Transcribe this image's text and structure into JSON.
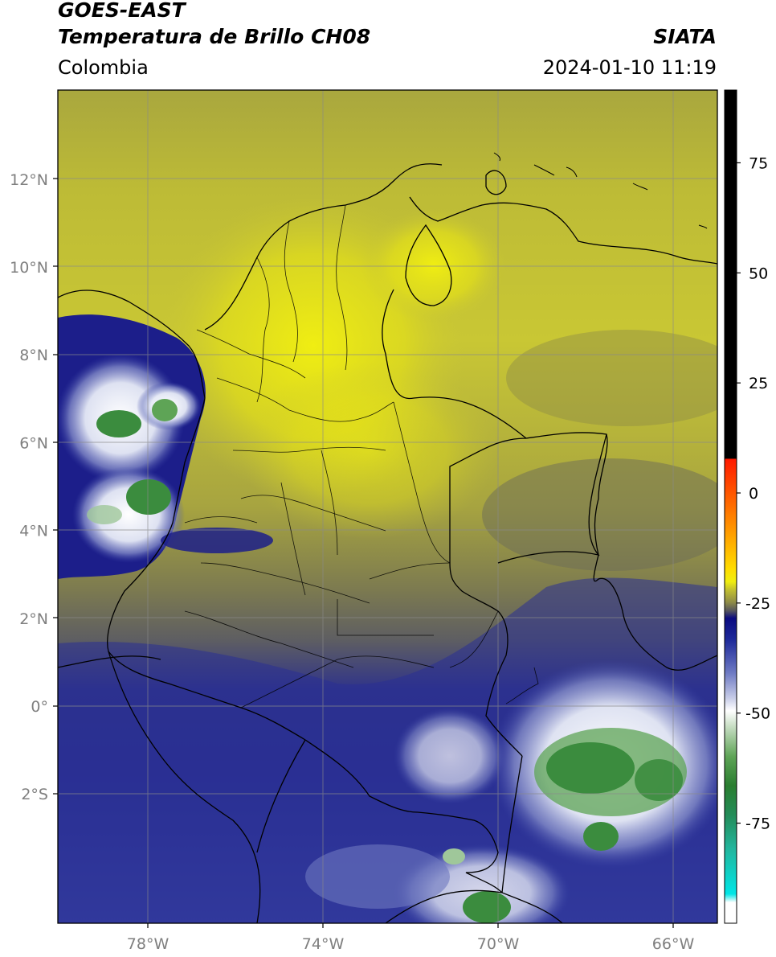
{
  "header": {
    "satellite": "GOES-EAST",
    "product": "Temperatura de Brillo CH08",
    "organization": "SIATA",
    "region": "Colombia",
    "timestamp": "2024-01-10 11:19"
  },
  "axes": {
    "lat_labels": [
      {
        "lat": 12,
        "text": "12°N"
      },
      {
        "lat": 10,
        "text": "10°N"
      },
      {
        "lat": 8,
        "text": "8°N"
      },
      {
        "lat": 6,
        "text": "6°N"
      },
      {
        "lat": 4,
        "text": "4°N"
      },
      {
        "lat": 2,
        "text": "2°N"
      },
      {
        "lat": 0,
        "text": "0°"
      },
      {
        "lat": -2,
        "text": "2°S"
      }
    ],
    "lon_labels": [
      {
        "lon": -78,
        "text": "78°W"
      },
      {
        "lon": -74,
        "text": "74°W"
      },
      {
        "lon": -70,
        "text": "70°W"
      },
      {
        "lon": -66,
        "text": "66°W"
      }
    ]
  },
  "colorbar": {
    "ticks": [
      {
        "value": 75,
        "text": "75"
      },
      {
        "value": 50,
        "text": "50"
      },
      {
        "value": 25,
        "text": "25"
      },
      {
        "value": 0,
        "text": "0"
      },
      {
        "value": -25,
        "text": "-25"
      },
      {
        "value": -50,
        "text": "-50"
      },
      {
        "value": -75,
        "text": "-75"
      }
    ],
    "colors": {
      "black": "#000000",
      "red": "#ff2a00",
      "orange": "#ff9a00",
      "yellow": "#f0ee10",
      "olive": "#c9c62e",
      "gray": "#6b6b55",
      "navy": "#0c0c8e",
      "blue": "#4a55ad",
      "lightblue": "#b0b8dc",
      "white": "#ffffff",
      "green": "#2e8b36",
      "teal": "#22b59c",
      "cyan": "#00e6e6"
    }
  },
  "palette": {
    "warm_clear": "#e6e414",
    "mid_clear": "#c4c23a",
    "olive_dark": "#8f8c48",
    "gray_mid": "#6a6a62",
    "navy_cloud": "#1a1f8c",
    "blue_cloud": "#5560b0",
    "cold_cloud": "#f0f2fa",
    "cold_top": "#3b8c3e",
    "border": "#000000"
  }
}
